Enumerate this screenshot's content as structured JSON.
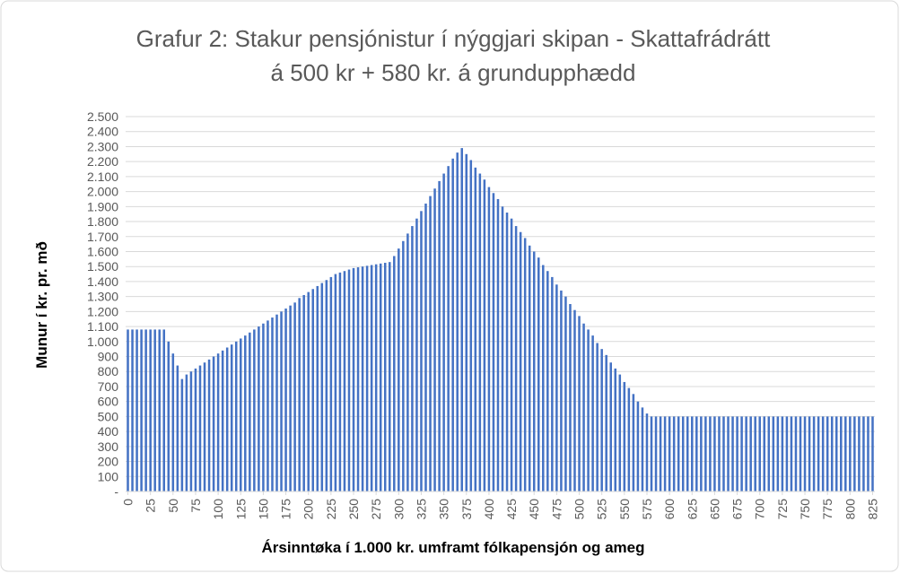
{
  "chart_data": {
    "type": "bar",
    "title": [
      "Grafur 2: Stakur pensjónistur í nýggjari skipan - Skattafrádrátt",
      "á 500 kr + 580 kr. á grundupphædd"
    ],
    "x_label": "Ársinntøka í 1.000 kr. umframt fólkapensjón og ameg",
    "y_label": "Munur í kr. pr. mð",
    "color": "#4472c4",
    "grid": true,
    "x": [
      0,
      5,
      10,
      15,
      20,
      25,
      30,
      35,
      40,
      45,
      50,
      55,
      60,
      65,
      70,
      75,
      80,
      85,
      90,
      95,
      100,
      105,
      110,
      115,
      120,
      125,
      130,
      135,
      140,
      145,
      150,
      155,
      160,
      165,
      170,
      175,
      180,
      185,
      190,
      195,
      200,
      205,
      210,
      215,
      220,
      225,
      230,
      235,
      240,
      245,
      250,
      255,
      260,
      265,
      270,
      275,
      280,
      285,
      290,
      295,
      300,
      305,
      310,
      315,
      320,
      325,
      330,
      335,
      340,
      345,
      350,
      355,
      360,
      365,
      370,
      375,
      380,
      385,
      390,
      395,
      400,
      405,
      410,
      415,
      420,
      425,
      430,
      435,
      440,
      445,
      450,
      455,
      460,
      465,
      470,
      475,
      480,
      485,
      490,
      495,
      500,
      505,
      510,
      515,
      520,
      525,
      530,
      535,
      540,
      545,
      550,
      555,
      560,
      565,
      570,
      575,
      580,
      585,
      590,
      595,
      600,
      605,
      610,
      615,
      620,
      625,
      630,
      635,
      640,
      645,
      650,
      655,
      660,
      665,
      670,
      675,
      680,
      685,
      690,
      695,
      700,
      705,
      710,
      715,
      720,
      725,
      730,
      735,
      740,
      745,
      750,
      755,
      760,
      765,
      770,
      775,
      780,
      785,
      790,
      795,
      800,
      805,
      810,
      815,
      820,
      825
    ],
    "values": [
      1080,
      1080,
      1080,
      1080,
      1080,
      1080,
      1080,
      1080,
      1080,
      1000,
      920,
      840,
      750,
      780,
      800,
      820,
      840,
      860,
      880,
      900,
      920,
      940,
      960,
      980,
      1000,
      1020,
      1040,
      1060,
      1080,
      1100,
      1120,
      1140,
      1160,
      1180,
      1200,
      1220,
      1240,
      1260,
      1290,
      1310,
      1330,
      1350,
      1370,
      1390,
      1410,
      1430,
      1450,
      1460,
      1470,
      1480,
      1490,
      1495,
      1500,
      1505,
      1510,
      1515,
      1520,
      1525,
      1530,
      1570,
      1620,
      1670,
      1720,
      1770,
      1820,
      1870,
      1920,
      1970,
      2020,
      2070,
      2120,
      2170,
      2220,
      2260,
      2290,
      2250,
      2210,
      2160,
      2120,
      2080,
      2030,
      1990,
      1950,
      1900,
      1860,
      1820,
      1770,
      1730,
      1690,
      1640,
      1600,
      1560,
      1510,
      1470,
      1430,
      1380,
      1340,
      1300,
      1250,
      1210,
      1170,
      1120,
      1080,
      1040,
      990,
      950,
      910,
      860,
      820,
      780,
      730,
      690,
      650,
      600,
      560,
      520,
      500,
      500,
      500,
      500,
      500,
      500,
      500,
      500,
      500,
      500,
      500,
      500,
      500,
      500,
      500,
      500,
      500,
      500,
      500,
      500,
      500,
      500,
      500,
      500,
      500,
      500,
      500,
      500,
      500,
      500,
      500,
      500,
      500,
      500,
      500,
      500,
      500,
      500,
      500,
      500,
      500,
      500,
      500,
      500,
      500,
      500,
      500,
      500,
      500,
      500
    ],
    "xlim": [
      -2.5,
      827.5
    ],
    "xticks": [
      0,
      25,
      50,
      75,
      100,
      125,
      150,
      175,
      200,
      225,
      250,
      275,
      300,
      325,
      350,
      375,
      400,
      425,
      450,
      475,
      500,
      525,
      550,
      575,
      600,
      625,
      650,
      675,
      700,
      725,
      750,
      775,
      800,
      825
    ],
    "ylim": [
      0,
      2500
    ],
    "yticks": [
      {
        "value": 0,
        "label": "-"
      },
      100,
      200,
      300,
      400,
      500,
      600,
      700,
      800,
      900,
      {
        "value": 1000,
        "label": "1.000"
      },
      {
        "value": 1100,
        "label": "1.100"
      },
      {
        "value": 1200,
        "label": "1.200"
      },
      {
        "value": 1300,
        "label": "1.300"
      },
      {
        "value": 1400,
        "label": "1.400"
      },
      {
        "value": 1500,
        "label": "1.500"
      },
      {
        "value": 1600,
        "label": "1.600"
      },
      {
        "value": 1700,
        "label": "1.700"
      },
      {
        "value": 1800,
        "label": "1.800"
      },
      {
        "value": 1900,
        "label": "1.900"
      },
      {
        "value": 2000,
        "label": "2.000"
      },
      {
        "value": 2100,
        "label": "2.100"
      },
      {
        "value": 2200,
        "label": "2.200"
      },
      {
        "value": 2300,
        "label": "2.300"
      },
      {
        "value": 2400,
        "label": "2.400"
      },
      {
        "value": 2500,
        "label": "2.500"
      }
    ]
  }
}
